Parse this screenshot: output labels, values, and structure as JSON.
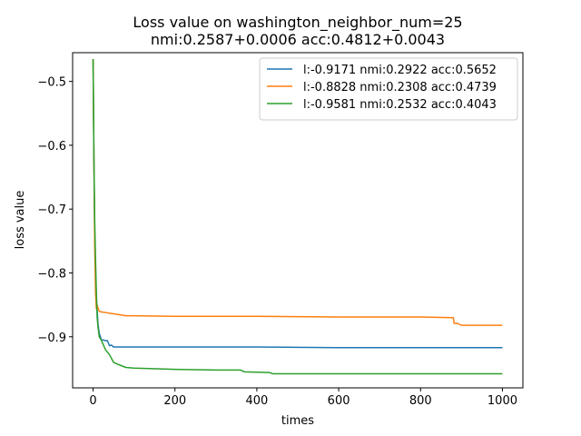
{
  "chart_data": {
    "type": "line",
    "title": "Loss value on washington_neighbor_num=25",
    "subtitle": "nmi:0.2587+0.0006 acc:0.4812+0.0043",
    "xlabel": "times",
    "ylabel": "loss value",
    "xlim": [
      -50,
      1050
    ],
    "ylim": [
      -0.98,
      -0.455
    ],
    "xticks": [
      0,
      200,
      400,
      600,
      800,
      1000
    ],
    "yticks": [
      -0.5,
      -0.6,
      -0.7,
      -0.8,
      -0.9
    ],
    "xtick_labels": [
      "0",
      "200",
      "400",
      "600",
      "800",
      "1000"
    ],
    "ytick_labels": [
      "−0.5",
      "−0.6",
      "−0.7",
      "−0.8",
      "−0.9"
    ],
    "grid": false,
    "legend_position": "top-right",
    "series": [
      {
        "name": "l:-0.9171 nmi:0.2922 acc:0.5652",
        "color": "#1f77b4",
        "x": [
          0,
          2,
          4,
          6,
          8,
          10,
          12,
          15,
          18,
          20,
          25,
          30,
          35,
          40,
          45,
          50,
          60,
          100,
          200,
          400,
          600,
          800,
          1000
        ],
        "y": [
          -0.465,
          -0.62,
          -0.74,
          -0.8,
          -0.84,
          -0.86,
          -0.88,
          -0.895,
          -0.9,
          -0.905,
          -0.905,
          -0.906,
          -0.906,
          -0.914,
          -0.913,
          -0.916,
          -0.916,
          -0.916,
          -0.916,
          -0.916,
          -0.917,
          -0.917,
          -0.917
        ]
      },
      {
        "name": "l:-0.8828 nmi:0.2308 acc:0.4739",
        "color": "#ff7f0e",
        "x": [
          0,
          2,
          4,
          6,
          8,
          10,
          12,
          15,
          20,
          30,
          50,
          70,
          80,
          100,
          200,
          400,
          600,
          800,
          880,
          882,
          890,
          900,
          1000
        ],
        "y": [
          -0.465,
          -0.62,
          -0.76,
          -0.83,
          -0.856,
          -0.85,
          -0.855,
          -0.86,
          -0.861,
          -0.862,
          -0.864,
          -0.866,
          -0.867,
          -0.867,
          -0.868,
          -0.868,
          -0.869,
          -0.869,
          -0.87,
          -0.879,
          -0.879,
          -0.882,
          -0.882
        ]
      },
      {
        "name": "l:-0.9581 nmi:0.2532 acc:0.4043",
        "color": "#2ca02c",
        "x": [
          0,
          2,
          4,
          6,
          8,
          10,
          12,
          15,
          20,
          30,
          40,
          50,
          60,
          80,
          100,
          200,
          300,
          360,
          370,
          430,
          440,
          600,
          800,
          1000
        ],
        "y": [
          -0.465,
          -0.62,
          -0.72,
          -0.78,
          -0.83,
          -0.87,
          -0.885,
          -0.9,
          -0.905,
          -0.92,
          -0.928,
          -0.94,
          -0.943,
          -0.948,
          -0.949,
          -0.951,
          -0.952,
          -0.952,
          -0.955,
          -0.956,
          -0.958,
          -0.958,
          -0.958,
          -0.958
        ]
      }
    ]
  }
}
